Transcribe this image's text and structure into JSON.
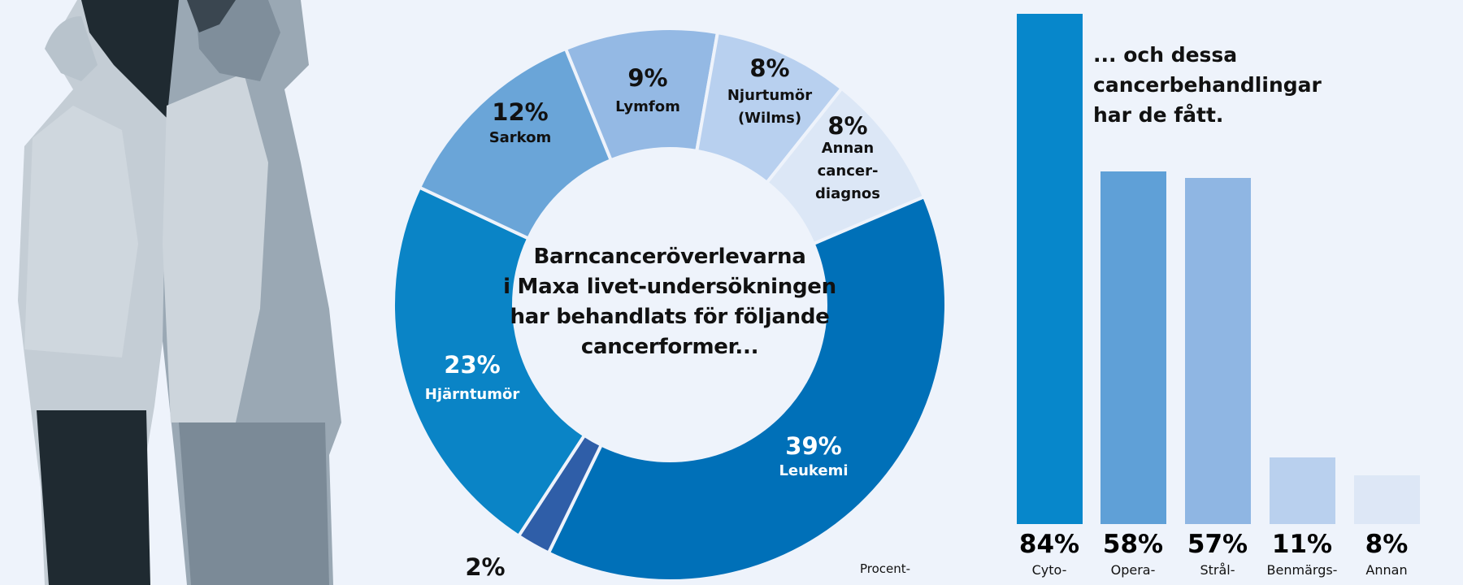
{
  "colors": {
    "background": "#eef3fb"
  },
  "photo": {
    "description_icon": "two-people-back-to-back-illustration"
  },
  "center_text": [
    "Barncanceröverlevarna",
    "i Maxa livet-undersökningen",
    "har behandlats för följande",
    "cancerformer..."
  ],
  "bar_heading": [
    "... och dessa",
    "cancerbehandlingar",
    "har de fått."
  ],
  "note": "Procent-",
  "chart_data": [
    {
      "type": "pie",
      "variant": "donut",
      "slices": [
        {
          "label": "Leukemi",
          "pct_label": "39%",
          "value": 39,
          "color": "#0070b8"
        },
        {
          "label": "",
          "pct_label": "2%",
          "value": 2,
          "color": "#2f5ea8"
        },
        {
          "label": "Hjärntumör",
          "pct_label": "23%",
          "value": 23,
          "color": "#0a84c6"
        },
        {
          "label": "Sarkom",
          "pct_label": "12%",
          "value": 12,
          "color": "#6aa5d8"
        },
        {
          "label": "Lymfom",
          "pct_label": "9%",
          "value": 9,
          "color": "#94b9e4"
        },
        {
          "label": "Njurtumör (Wilms)",
          "label_lines": [
            "Njurtumör",
            "(Wilms)"
          ],
          "pct_label": "8%",
          "value": 8,
          "color": "#b8d0ef"
        },
        {
          "label": "Annan cancerdiagnos",
          "label_lines": [
            "Annan",
            "cancer-",
            "diagnos"
          ],
          "pct_label": "8%",
          "value": 8,
          "color": "#dce7f6"
        }
      ]
    },
    {
      "type": "bar",
      "categories": [
        "Cyto-",
        "Opera-",
        "Strål-",
        "Benmärgs-",
        "Annan"
      ],
      "values": [
        84,
        58,
        57,
        11,
        8
      ],
      "value_labels": [
        "84%",
        "58%",
        "57%",
        "11%",
        "8%"
      ],
      "colors": [
        "#0787cb",
        "#5fa0d7",
        "#8fb6e3",
        "#b9d0ee",
        "#dde7f6"
      ],
      "ylim": [
        0,
        84
      ]
    }
  ]
}
